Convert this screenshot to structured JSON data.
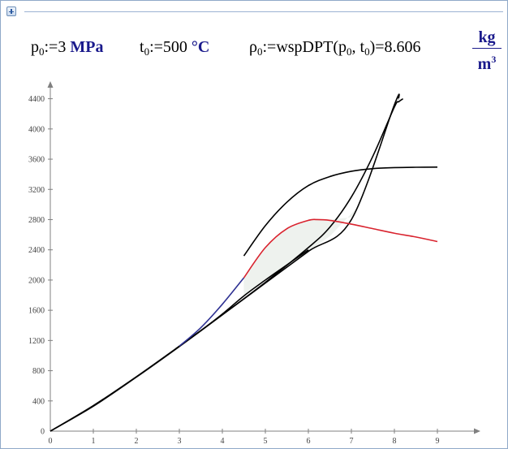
{
  "region": {
    "toggle_icon": "plus-icon"
  },
  "equations": {
    "p0": {
      "symbol": "p",
      "sub": "0",
      "assign": ":=",
      "value": "3",
      "unit": "MPa"
    },
    "t0": {
      "symbol": "t",
      "sub": "0",
      "assign": ":=",
      "value": "500",
      "unit": "°C"
    },
    "rho0": {
      "symbol": "ρ",
      "sub": "0",
      "assign": ":=",
      "func": "wspDPT",
      "arg1_symbol": "p",
      "arg1_sub": "0",
      "arg2_symbol": "t",
      "arg2_sub": "0",
      "equals": "=",
      "result": "8.606",
      "unit_num": "kg",
      "unit_den": "m",
      "unit_den_exp": "3"
    }
  },
  "chart_data": {
    "type": "line",
    "title": "",
    "xlabel": "",
    "ylabel": "",
    "xlim": [
      0,
      10
    ],
    "ylim": [
      0,
      4600
    ],
    "x_ticks": [
      "0",
      "1",
      "2",
      "3",
      "4",
      "5",
      "6",
      "7",
      "8",
      "9"
    ],
    "y_ticks": [
      "0",
      "400",
      "800",
      "1200",
      "1600",
      "2000",
      "2400",
      "2800",
      "3200",
      "3600",
      "4000",
      "4400"
    ],
    "grid": false,
    "legend": "none",
    "series": [
      {
        "color": "#000000",
        "x": [
          0,
          1,
          2,
          3,
          4,
          5,
          6,
          7,
          8,
          8.1
        ],
        "y": [
          0,
          338,
          720,
          1125,
          1540,
          1960,
          2380,
          2800,
          4320,
          4400
        ]
      },
      {
        "color": "#000000",
        "x": [
          4.5,
          5,
          5.5,
          6,
          6.5,
          7,
          7.5,
          8,
          8.5,
          9
        ],
        "y": [
          2320,
          2720,
          3030,
          3250,
          3370,
          3440,
          3475,
          3488,
          3493,
          3495
        ]
      },
      {
        "color": "#000000",
        "x": [
          0,
          1,
          2,
          3,
          4,
          5,
          6,
          6.5,
          7,
          7.5,
          8,
          8.1,
          8.2
        ],
        "y": [
          0,
          330,
          715,
          1120,
          1540,
          1970,
          2430,
          2700,
          3100,
          3640,
          4290,
          4360,
          4400
        ]
      },
      {
        "color": "#000000",
        "x": [
          3,
          3.5,
          4,
          4.5,
          5,
          5.5,
          6
        ],
        "y": [
          1125,
          1330,
          1550,
          1790,
          2000,
          2200,
          2400
        ]
      },
      {
        "color": "#2e3192",
        "x": [
          3,
          3.5,
          4,
          4.5
        ],
        "y": [
          1125,
          1370,
          1680,
          2030
        ]
      },
      {
        "color": "#d9232e",
        "x": [
          4.5,
          5,
          5.5,
          6,
          6.2,
          6.5,
          7,
          7.5,
          8,
          8.5,
          9
        ],
        "y": [
          2030,
          2430,
          2680,
          2790,
          2800,
          2790,
          2740,
          2680,
          2620,
          2570,
          2510
        ]
      }
    ],
    "shade": {
      "color": "#eef2ee",
      "upper_x": [
        4.5,
        5,
        5.5,
        6,
        6.5,
        7,
        7.2
      ],
      "upper_y": [
        2030,
        2430,
        2680,
        2790,
        2800,
        2830,
        3000
      ],
      "lower_x": [
        7.2,
        6.5,
        6,
        5.5,
        5,
        4.5
      ],
      "lower_y": [
        3000,
        2580,
        2380,
        2200,
        2000,
        1790
      ]
    }
  }
}
